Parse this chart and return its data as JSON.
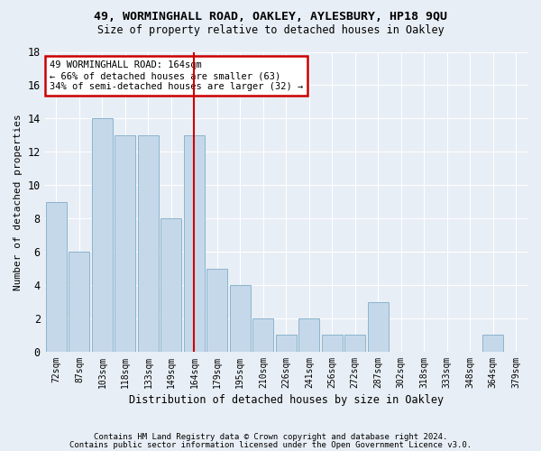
{
  "title1": "49, WORMINGHALL ROAD, OAKLEY, AYLESBURY, HP18 9QU",
  "title2": "Size of property relative to detached houses in Oakley",
  "xlabel": "Distribution of detached houses by size in Oakley",
  "ylabel": "Number of detached properties",
  "categories": [
    "72sqm",
    "87sqm",
    "103sqm",
    "118sqm",
    "133sqm",
    "149sqm",
    "164sqm",
    "179sqm",
    "195sqm",
    "210sqm",
    "226sqm",
    "241sqm",
    "256sqm",
    "272sqm",
    "287sqm",
    "302sqm",
    "318sqm",
    "333sqm",
    "348sqm",
    "364sqm",
    "379sqm"
  ],
  "values": [
    9,
    6,
    14,
    13,
    13,
    8,
    13,
    5,
    4,
    2,
    1,
    2,
    1,
    1,
    3,
    0,
    0,
    0,
    0,
    1,
    0
  ],
  "highlight_index": 6,
  "bar_color": "#c5d8ea",
  "bar_edge_color": "#8ab4cc",
  "highlight_line_color": "#cc0000",
  "annotation_line1": "49 WORMINGHALL ROAD: 164sqm",
  "annotation_line2": "← 66% of detached houses are smaller (63)",
  "annotation_line3": "34% of semi-detached houses are larger (32) →",
  "annotation_box_color": "#cc0000",
  "ylim": [
    0,
    18
  ],
  "yticks": [
    0,
    2,
    4,
    6,
    8,
    10,
    12,
    14,
    16,
    18
  ],
  "footer1": "Contains HM Land Registry data © Crown copyright and database right 2024.",
  "footer2": "Contains public sector information licensed under the Open Government Licence v3.0.",
  "bg_color": "#e8eef5",
  "grid_color": "#ffffff"
}
